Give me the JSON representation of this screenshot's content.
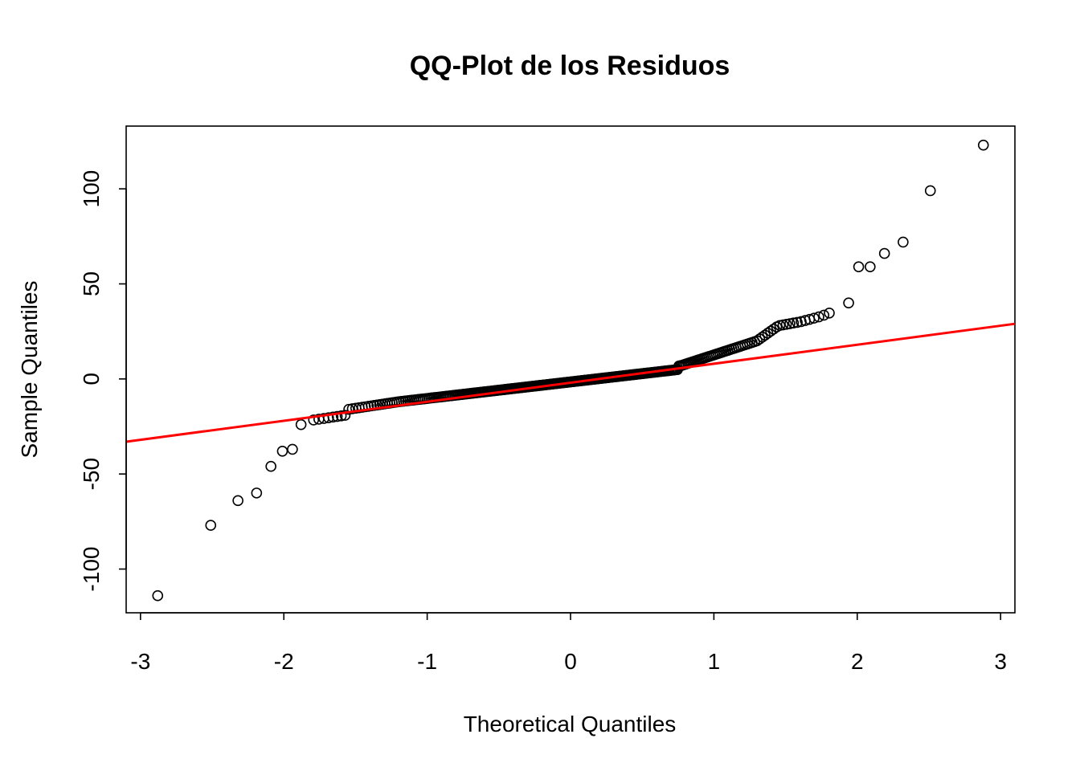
{
  "chart_data": {
    "type": "scatter",
    "title": "QQ-Plot de los Residuos",
    "xlabel": "Theoretical Quantiles",
    "ylabel": "Sample Quantiles",
    "xlim": [
      -3.1,
      3.1
    ],
    "ylim": [
      -123,
      133
    ],
    "x_ticks": [
      -3,
      -2,
      -1,
      0,
      1,
      2,
      3
    ],
    "x_tick_labels": [
      "-3",
      "-2",
      "-1",
      "0",
      "1",
      "2",
      "3"
    ],
    "y_ticks": [
      -100,
      -50,
      0,
      50,
      100
    ],
    "y_tick_labels": [
      "-100",
      "-50",
      "0",
      "50",
      "100"
    ],
    "grid": false,
    "colors": {
      "points": "#000000",
      "reference_line": "#ff0000"
    },
    "reference_line": {
      "x": [
        -3.1,
        3.1
      ],
      "y": [
        -33,
        29
      ]
    },
    "outliers": {
      "x": [
        -2.88,
        -2.51,
        -2.32,
        -2.19,
        -2.09,
        -2.01,
        -1.94,
        -1.88,
        1.94,
        2.01,
        2.09,
        2.19,
        2.32,
        2.51,
        2.88
      ],
      "y": [
        -114,
        -77,
        -64,
        -60,
        -46,
        -38,
        -37,
        -24,
        40,
        59,
        59,
        66,
        72,
        99,
        123
      ]
    },
    "body": {
      "x": [
        -1.83,
        0.77,
        1.3,
        1.45,
        1.6,
        1.75,
        1.85
      ],
      "y": [
        -22,
        7,
        20,
        28,
        30,
        33,
        36
      ]
    },
    "n_points": 320
  }
}
